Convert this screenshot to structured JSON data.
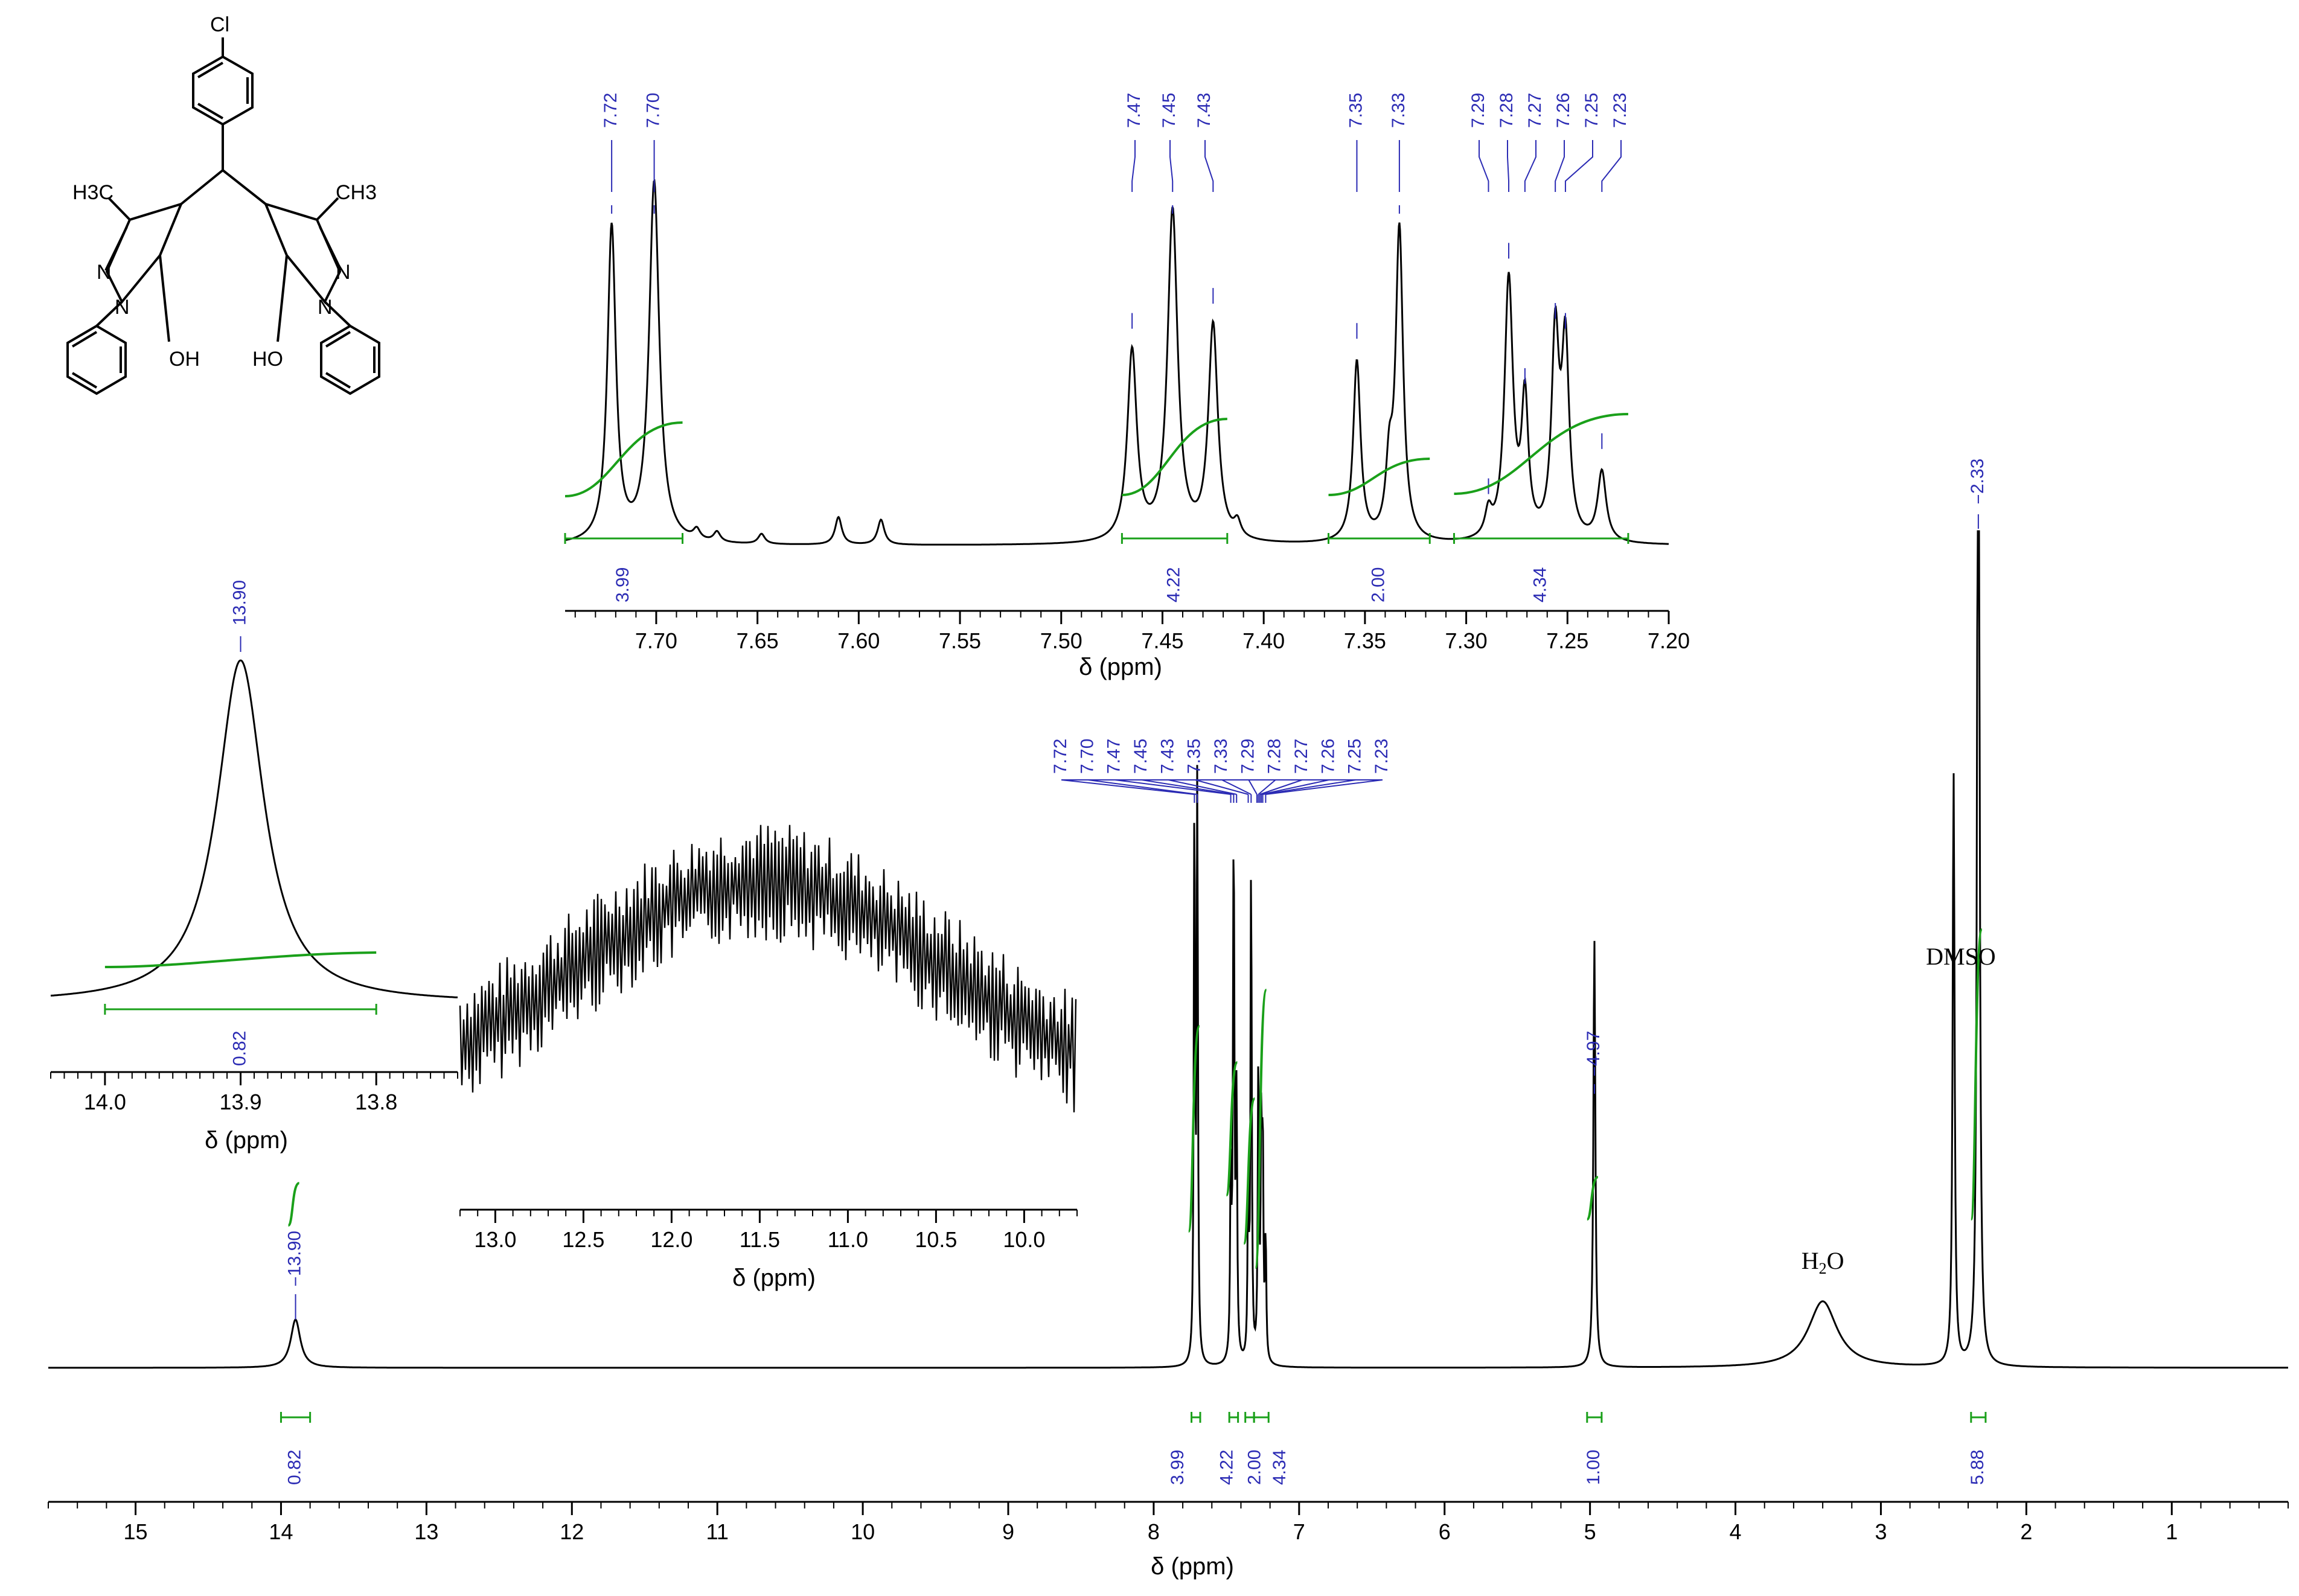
{
  "colors": {
    "spectrum": "#000000",
    "peak_label": "#2b2bb4",
    "integral": "#1aa01a",
    "axis": "#000000"
  },
  "chart_data": [
    {
      "id": "main",
      "type": "line",
      "xlabel": "δ (ppm)",
      "xlim": [
        15.6,
        0.2
      ],
      "x_ticks": [
        "15",
        "14",
        "13",
        "12",
        "11",
        "10",
        "9",
        "8",
        "7",
        "6",
        "5",
        "4",
        "3",
        "2",
        "1"
      ],
      "peaks": [
        {
          "shift": 13.9,
          "height": 0.08,
          "width": 0.04
        },
        {
          "shift": 7.72,
          "height": 0.93,
          "width": 0.005
        },
        {
          "shift": 7.7,
          "height": 0.96,
          "width": 0.005
        },
        {
          "shift": 7.47,
          "height": 0.3,
          "width": 0.005
        },
        {
          "shift": 7.45,
          "height": 0.86,
          "width": 0.006
        },
        {
          "shift": 7.43,
          "height": 0.42,
          "width": 0.005
        },
        {
          "shift": 7.35,
          "height": 0.3,
          "width": 0.005
        },
        {
          "shift": 7.33,
          "height": 0.83,
          "width": 0.005
        },
        {
          "shift": 7.28,
          "height": 0.5,
          "width": 0.005
        },
        {
          "shift": 7.26,
          "height": 0.36,
          "width": 0.005
        },
        {
          "shift": 7.25,
          "height": 0.34,
          "width": 0.005
        },
        {
          "shift": 7.23,
          "height": 0.2,
          "width": 0.005
        },
        {
          "shift": 4.97,
          "height": 0.71,
          "width": 0.008
        },
        {
          "shift": 3.4,
          "height": 0.11,
          "width": 0.12
        },
        {
          "shift": 2.5,
          "height": 0.98,
          "width": 0.008
        },
        {
          "shift": 2.33,
          "height": 2.35,
          "width": 0.008
        }
      ],
      "peak_labels": [
        "13.90",
        "4.97",
        "2.33"
      ],
      "cluster_labels": [
        "7.72",
        "7.70",
        "7.47",
        "7.45",
        "7.43",
        "7.35",
        "7.33",
        "7.29",
        "7.28",
        "7.27",
        "7.26",
        "7.25",
        "7.23"
      ],
      "integrals": [
        {
          "from": 14.0,
          "to": 13.8,
          "value": "0.82"
        },
        {
          "from": 7.74,
          "to": 7.68,
          "value": "3.99"
        },
        {
          "from": 7.48,
          "to": 7.42,
          "value": "4.22"
        },
        {
          "from": 7.37,
          "to": 7.31,
          "value": "2.00"
        },
        {
          "from": 7.31,
          "to": 7.21,
          "value": "4.34"
        },
        {
          "from": 5.02,
          "to": 4.92,
          "value": "1.00"
        },
        {
          "from": 2.38,
          "to": 2.28,
          "value": "5.88"
        }
      ],
      "annotations": [
        {
          "text": "DMSO",
          "shift": 2.5
        },
        {
          "text": "H",
          "sub": "2",
          "text2": "O",
          "shift": 3.4
        }
      ]
    },
    {
      "id": "inset_aromatic",
      "type": "line",
      "xlabel": "δ (ppm)",
      "xlim": [
        7.745,
        7.2
      ],
      "x_ticks": [
        "7.70",
        "7.65",
        "7.60",
        "7.55",
        "7.50",
        "7.45",
        "7.40",
        "7.35",
        "7.30",
        "7.25",
        "7.20"
      ],
      "peaks": [
        {
          "shift": 7.722,
          "height": 0.63,
          "width": 0.0025
        },
        {
          "shift": 7.701,
          "height": 0.72,
          "width": 0.003
        },
        {
          "shift": 7.68,
          "height": 0.02,
          "width": 0.002
        },
        {
          "shift": 7.67,
          "height": 0.02,
          "width": 0.002
        },
        {
          "shift": 7.648,
          "height": 0.02,
          "width": 0.002
        },
        {
          "shift": 7.61,
          "height": 0.055,
          "width": 0.002
        },
        {
          "shift": 7.589,
          "height": 0.05,
          "width": 0.002
        },
        {
          "shift": 7.465,
          "height": 0.38,
          "width": 0.0028
        },
        {
          "shift": 7.445,
          "height": 0.66,
          "width": 0.003
        },
        {
          "shift": 7.425,
          "height": 0.43,
          "width": 0.0028
        },
        {
          "shift": 7.413,
          "height": 0.03,
          "width": 0.002
        },
        {
          "shift": 7.354,
          "height": 0.36,
          "width": 0.0022
        },
        {
          "shift": 7.338,
          "height": 0.13,
          "width": 0.002
        },
        {
          "shift": 7.333,
          "height": 0.62,
          "width": 0.0022
        },
        {
          "shift": 7.289,
          "height": 0.05,
          "width": 0.002
        },
        {
          "shift": 7.279,
          "height": 0.52,
          "width": 0.0025
        },
        {
          "shift": 7.271,
          "height": 0.27,
          "width": 0.002
        },
        {
          "shift": 7.256,
          "height": 0.4,
          "width": 0.0022
        },
        {
          "shift": 7.251,
          "height": 0.38,
          "width": 0.0022
        },
        {
          "shift": 7.233,
          "height": 0.14,
          "width": 0.0025
        }
      ],
      "peak_labels": [
        {
          "text": "7.72",
          "shift": 7.722
        },
        {
          "text": "7.70",
          "shift": 7.701
        },
        {
          "text": "7.47",
          "shift": 7.465
        },
        {
          "text": "7.45",
          "shift": 7.445
        },
        {
          "text": "7.43",
          "shift": 7.425
        },
        {
          "text": "7.35",
          "shift": 7.354
        },
        {
          "text": "7.33",
          "shift": 7.333
        },
        {
          "text": "7.29",
          "shift": 7.289
        },
        {
          "text": "7.28",
          "shift": 7.279
        },
        {
          "text": "7.27",
          "shift": 7.271
        },
        {
          "text": "7.26",
          "shift": 7.256
        },
        {
          "text": "7.25",
          "shift": 7.251
        },
        {
          "text": "7.23",
          "shift": 7.233
        }
      ],
      "integrals": [
        {
          "from": 7.745,
          "to": 7.687,
          "value": "3.99"
        },
        {
          "from": 7.47,
          "to": 7.418,
          "value": "4.22"
        },
        {
          "from": 7.368,
          "to": 7.318,
          "value": "2.00"
        },
        {
          "from": 7.306,
          "to": 7.22,
          "value": "4.34"
        }
      ]
    },
    {
      "id": "inset_1390",
      "type": "line",
      "xlabel": "δ (ppm)",
      "xlim": [
        14.04,
        13.74
      ],
      "x_ticks": [
        "14.0",
        "13.9",
        "13.8"
      ],
      "peaks": [
        {
          "shift": 13.9,
          "height": 1.0,
          "width": 0.021
        }
      ],
      "peak_label": "13.90",
      "integral": {
        "from": 14.0,
        "to": 13.8,
        "value": "0.82"
      }
    },
    {
      "id": "inset_broad",
      "type": "line",
      "xlabel": "δ (ppm)",
      "xlim": [
        13.2,
        9.7
      ],
      "x_ticks": [
        "13.0",
        "12.5",
        "12.0",
        "11.5",
        "11.0",
        "10.5",
        "10.0"
      ],
      "broad_center": 11.5,
      "broad_width": 1.6
    }
  ],
  "structure": {
    "labels": [
      "Cl",
      "H3C",
      "CH3",
      "N",
      "N",
      "N",
      "N",
      "OH",
      "HO"
    ]
  }
}
